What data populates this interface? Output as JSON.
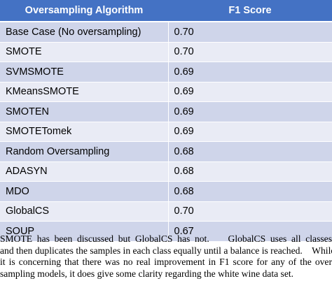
{
  "table": {
    "header": [
      "Oversampling Algorithm",
      "F1 Score"
    ],
    "rows": [
      [
        "Base Case (No oversampling)",
        "0.70"
      ],
      [
        "SMOTE",
        "0.70"
      ],
      [
        "SVMSMOTE",
        "0.69"
      ],
      [
        "KMeansSMOTE",
        "0.69"
      ],
      [
        "SMOTEN",
        "0.69"
      ],
      [
        "SMOTETomek",
        "0.69"
      ],
      [
        "Random Oversampling",
        "0.68"
      ],
      [
        "ADASYN",
        "0.68"
      ],
      [
        "MDO",
        "0.68"
      ],
      [
        "GlobalCS",
        "0.70"
      ],
      [
        "SOUP",
        "0.67"
      ]
    ]
  },
  "paragraph": {
    "lines": [
      "SMOTE has been discussed but GlobalCS has not.    GlobalCS uses all classes",
      "and then duplicates the samples in each class equally until a balance is reached.    While",
      "it is concerning that there was no real improvement in F1 score for any of the over",
      "sampling models, it does give some clarity regarding the white wine data set."
    ]
  }
}
